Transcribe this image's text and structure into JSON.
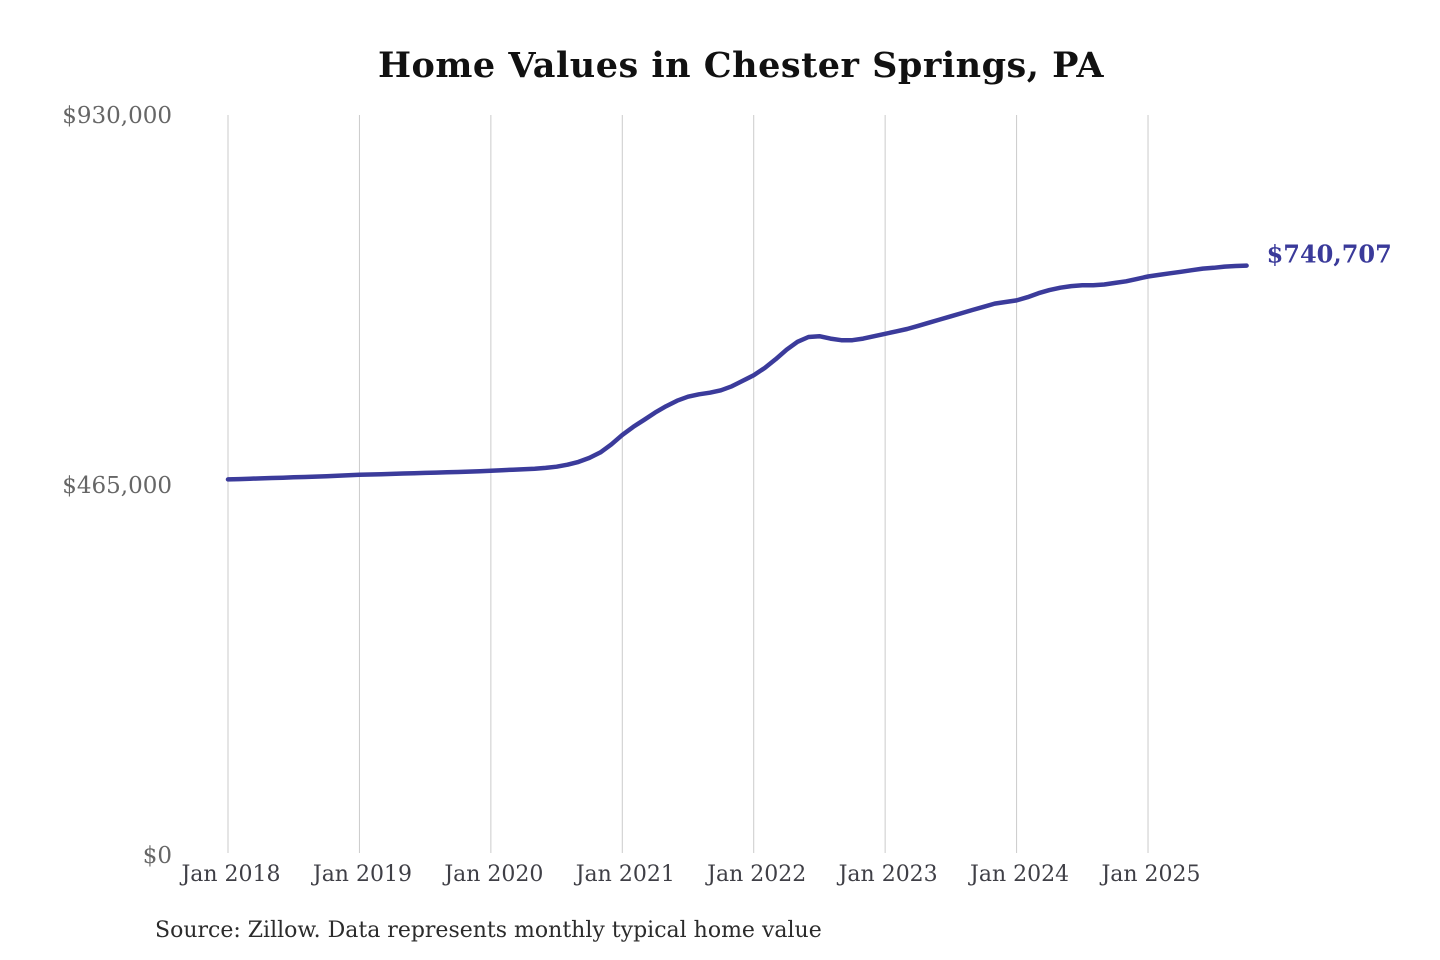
{
  "page": {
    "background_color": "#ffffff"
  },
  "chart": {
    "title": "Home Values in Chester Springs, PA",
    "source_note": "Source: Zillow. Data represents monthly typical home value",
    "end_value_label": "$740,707"
  },
  "chart_data": {
    "type": "line",
    "title": "Home Values in Chester Springs, PA",
    "series_name": "Monthly typical home value",
    "unit": "USD",
    "ylim": [
      0,
      930000
    ],
    "grid": "vertical-only",
    "legend": "none",
    "x": [
      "2018-01",
      "2018-02",
      "2018-03",
      "2018-04",
      "2018-05",
      "2018-06",
      "2018-07",
      "2018-08",
      "2018-09",
      "2018-10",
      "2018-11",
      "2018-12",
      "2019-01",
      "2019-02",
      "2019-03",
      "2019-04",
      "2019-05",
      "2019-06",
      "2019-07",
      "2019-08",
      "2019-09",
      "2019-10",
      "2019-11",
      "2019-12",
      "2020-01",
      "2020-02",
      "2020-03",
      "2020-04",
      "2020-05",
      "2020-06",
      "2020-07",
      "2020-08",
      "2020-09",
      "2020-10",
      "2020-11",
      "2020-12",
      "2021-01",
      "2021-02",
      "2021-03",
      "2021-04",
      "2021-05",
      "2021-06",
      "2021-07",
      "2021-08",
      "2021-09",
      "2021-10",
      "2021-11",
      "2021-12",
      "2022-01",
      "2022-02",
      "2022-03",
      "2022-04",
      "2022-05",
      "2022-06",
      "2022-07",
      "2022-08",
      "2022-09",
      "2022-10",
      "2022-11",
      "2022-12",
      "2023-01",
      "2023-02",
      "2023-03",
      "2023-04",
      "2023-05",
      "2023-06",
      "2023-07",
      "2023-08",
      "2023-09",
      "2023-10",
      "2023-11",
      "2023-12",
      "2024-01",
      "2024-02",
      "2024-03",
      "2024-04",
      "2024-05",
      "2024-06",
      "2024-07",
      "2024-08",
      "2024-09",
      "2024-10",
      "2024-11",
      "2024-12",
      "2025-01",
      "2025-02",
      "2025-03",
      "2025-04",
      "2025-05",
      "2025-06",
      "2025-07",
      "2025-08",
      "2025-09",
      "2025-10"
    ],
    "values": [
      472000,
      472400,
      472900,
      473300,
      473800,
      474200,
      474700,
      475100,
      475600,
      476100,
      476700,
      477200,
      477800,
      478200,
      478600,
      479000,
      479400,
      479800,
      480200,
      480600,
      481000,
      481400,
      481900,
      482400,
      483000,
      483600,
      484200,
      484800,
      485500,
      486500,
      488000,
      490500,
      494000,
      499000,
      506000,
      516000,
      528000,
      538000,
      547000,
      556000,
      564000,
      571000,
      576000,
      579000,
      581000,
      584000,
      589000,
      596000,
      603000,
      612000,
      623000,
      635000,
      645000,
      651000,
      652000,
      649000,
      647000,
      647000,
      649000,
      652000,
      655000,
      658000,
      661000,
      665000,
      669000,
      673000,
      677000,
      681000,
      685000,
      689000,
      693000,
      695000,
      697000,
      701000,
      706000,
      710000,
      713000,
      715000,
      716000,
      716000,
      717000,
      719000,
      721000,
      724000,
      727000,
      729000,
      731000,
      733000,
      735000,
      737000,
      738000,
      739500,
      740200,
      740707
    ],
    "y_ticks": [
      {
        "label": "$0",
        "value": 0
      },
      {
        "label": "$465,000",
        "value": 465000
      },
      {
        "label": "$930,000",
        "value": 930000
      }
    ],
    "x_ticks": [
      {
        "label": "Jan 2018",
        "month": "2018-01"
      },
      {
        "label": "Jan 2019",
        "month": "2019-01"
      },
      {
        "label": "Jan 2020",
        "month": "2020-01"
      },
      {
        "label": "Jan 2021",
        "month": "2021-01"
      },
      {
        "label": "Jan 2022",
        "month": "2022-01"
      },
      {
        "label": "Jan 2023",
        "month": "2023-01"
      },
      {
        "label": "Jan 2024",
        "month": "2024-01"
      },
      {
        "label": "Jan 2025",
        "month": "2025-01"
      }
    ],
    "annotation": {
      "text": "$740,707",
      "at": "2025-10"
    },
    "colors": {
      "line": "#3b3b9b",
      "annotation": "#3a3a9a",
      "gridline": "#cbcbcb",
      "y_tick_text": "#666666",
      "x_tick_text": "#3f3f46",
      "title_text": "#111111",
      "source_text": "#2b2b2b"
    }
  }
}
